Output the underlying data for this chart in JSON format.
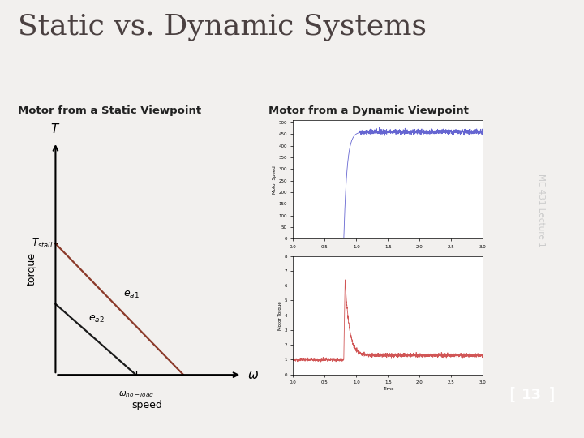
{
  "title": "Static vs. Dynamic Systems",
  "subtitle_left": "Motor from a Static Viewpoint",
  "subtitle_right": "Motor from a Dynamic Viewpoint",
  "bg_color": "#f2f0ee",
  "right_bar_color": "#5a4545",
  "slide_num_box_color": "#b06050",
  "title_color": "#4a4040",
  "subtitle_color": "#222222",
  "slide_number": "13",
  "side_text": "ME 431 Lecture 1",
  "torque_label": "torque",
  "speed_label": "speed",
  "line1_color": "#8b3a2a",
  "line2_color": "#1a1a1a",
  "plot_border_color": "#333333",
  "speed_line_color": "#5555cc",
  "torque_line_color": "#cc4444"
}
